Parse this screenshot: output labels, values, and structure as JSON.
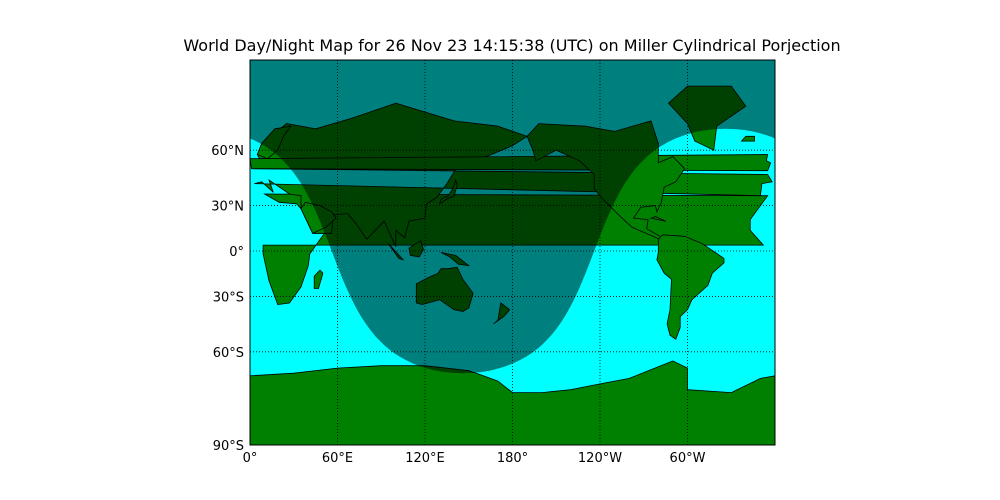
{
  "title": "World Day/Night Map for 26 Nov 23 14:15:38 (UTC) on Miller Cylindrical Porjection",
  "colors": {
    "ocean": "#00ffff",
    "land": "#008000",
    "night_overlay": "#000000",
    "night_opacity": 0.5,
    "coastline": "#000000",
    "grid": "#000000"
  },
  "map": {
    "projection": "Miller Cylindrical",
    "lon_range": [
      0,
      360
    ],
    "lat_range": [
      -90,
      90
    ],
    "parallels": [
      -60,
      -30,
      0,
      30,
      60
    ],
    "meridians": [
      60,
      120,
      180,
      240,
      300
    ],
    "grid_style": "dotted"
  },
  "axis": {
    "lat_labels": [
      {
        "lat": 60,
        "label": "60°N"
      },
      {
        "lat": 30,
        "label": "30°N"
      },
      {
        "lat": 0,
        "label": "0°"
      },
      {
        "lat": -30,
        "label": "30°S"
      },
      {
        "lat": -60,
        "label": "60°S"
      },
      {
        "lat": -90,
        "label": "90°S"
      }
    ],
    "lon_labels": [
      {
        "lon": 0,
        "label": "0°"
      },
      {
        "lon": 60,
        "label": "60°E"
      },
      {
        "lon": 120,
        "label": "120°E"
      },
      {
        "lon": 180,
        "label": "180°"
      },
      {
        "lon": 240,
        "label": "120°W"
      },
      {
        "lon": 300,
        "label": "60°W"
      }
    ]
  },
  "terminator": {
    "utc_time": "26 Nov 23 14:15:38",
    "subsolar_lat": -21,
    "subsolar_lon": 326
  }
}
